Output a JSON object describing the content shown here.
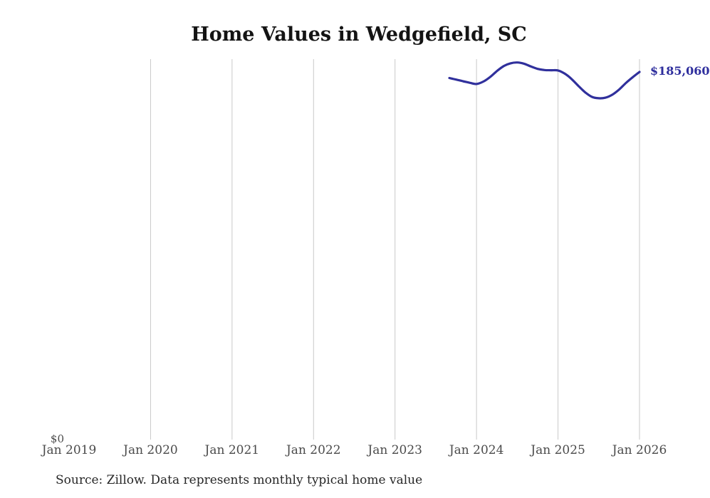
{
  "title": "Home Values in Wedgefield, SC",
  "source_note": "Source: Zillow. Data represents monthly typical home value",
  "end_label": "$185,060",
  "y_zero_label": "$0",
  "colors": {
    "line": "#30309c",
    "end_label_text": "#2e2e9d",
    "grid": "#c9c9c9",
    "axis_text": "#4b4b4b",
    "title_text": "#141414",
    "source_text": "#262626",
    "background": "#ffffff"
  },
  "chart_data": {
    "type": "line",
    "title": "Home Values in Wedgefield, SC",
    "xlabel": "",
    "ylabel": "",
    "grid": "vertical-only",
    "legend": "none",
    "x_axis": {
      "start": "Jan 2019",
      "end": "Jan 2026",
      "ticks": [
        {
          "label": "Jan 2019",
          "gridline": false
        },
        {
          "label": "Jan 2020",
          "gridline": true
        },
        {
          "label": "Jan 2021",
          "gridline": true
        },
        {
          "label": "Jan 2022",
          "gridline": true
        },
        {
          "label": "Jan 2023",
          "gridline": true
        },
        {
          "label": "Jan 2024",
          "gridline": true
        },
        {
          "label": "Jan 2025",
          "gridline": true
        },
        {
          "label": "Jan 2026",
          "gridline": true
        }
      ]
    },
    "y_axis": {
      "ylim": [
        0,
        191500
      ],
      "zero_label": "$0",
      "unit": "USD"
    },
    "end_label": "$185,060",
    "series": [
      {
        "name": "Monthly typical home value",
        "points": [
          [
            "2023-09",
            182000
          ],
          [
            "2023-10",
            181200
          ],
          [
            "2023-11",
            180400
          ],
          [
            "2023-12",
            179600
          ],
          [
            "2024-01",
            179000
          ],
          [
            "2024-02",
            180200
          ],
          [
            "2024-03",
            182500
          ],
          [
            "2024-04",
            185500
          ],
          [
            "2024-05",
            188000
          ],
          [
            "2024-06",
            189400
          ],
          [
            "2024-07",
            189800
          ],
          [
            "2024-08",
            189200
          ],
          [
            "2024-09",
            187800
          ],
          [
            "2024-10",
            186600
          ],
          [
            "2024-11",
            186000
          ],
          [
            "2024-12",
            185900
          ],
          [
            "2025-01",
            185800
          ],
          [
            "2025-02",
            184200
          ],
          [
            "2025-03",
            181500
          ],
          [
            "2025-04",
            178000
          ],
          [
            "2025-05",
            174800
          ],
          [
            "2025-06",
            172500
          ],
          [
            "2025-07",
            171800
          ],
          [
            "2025-08",
            172100
          ],
          [
            "2025-09",
            173600
          ],
          [
            "2025-10",
            176200
          ],
          [
            "2025-11",
            179500
          ],
          [
            "2025-12",
            182400
          ],
          [
            "2026-01",
            185060
          ]
        ]
      }
    ]
  }
}
